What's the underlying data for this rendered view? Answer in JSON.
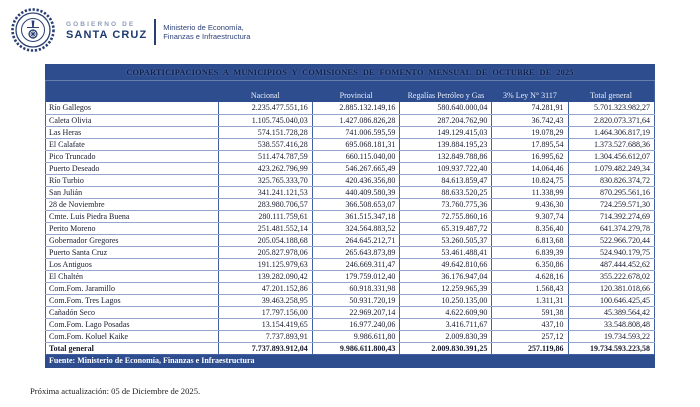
{
  "brand": {
    "gobierno_label": "GOBIERNO DE",
    "provincia": "SANTA CRUZ",
    "ministerio_line1": "Ministerio de  Economía,",
    "ministerio_line2": "Finanzas e Infraestructura"
  },
  "colors": {
    "band_navy": "#2e4d8e",
    "title_text": "#0e2150",
    "header_text": "#e8eef8",
    "grid_vertical": "#42609f",
    "grid_horizontal": "#93a6cc",
    "seal_navy": "#2b3f74"
  },
  "table": {
    "title": "COPARTICIPACIONES A MUNICIPIOS Y COMISIONES DE FOMENTO MENSUAL DE OCTUBRE DE 2025",
    "columns": [
      "",
      "Nacional",
      "Provincial",
      "Regalías Petróleo y Gas",
      "3% Ley N° 3117",
      "Total general"
    ],
    "rows": [
      {
        "name": "Río Gallegos",
        "values": [
          "2.235.477.551,16",
          "2.885.132.149,16",
          "580.640.000,04",
          "74.281,91",
          "5.701.323.982,27"
        ]
      },
      {
        "name": "Caleta Olivia",
        "values": [
          "1.105.745.040,03",
          "1.427.086.826,28",
          "287.204.762,90",
          "36.742,43",
          "2.820.073.371,64"
        ]
      },
      {
        "name": "Las Heras",
        "values": [
          "574.151.728,28",
          "741.006.595,59",
          "149.129.415,03",
          "19.078,29",
          "1.464.306.817,19"
        ]
      },
      {
        "name": "El Calafate",
        "values": [
          "538.557.416,28",
          "695.068.181,31",
          "139.884.195,23",
          "17.895,54",
          "1.373.527.688,36"
        ]
      },
      {
        "name": "Pico Truncado",
        "values": [
          "511.474.787,59",
          "660.115.040,00",
          "132.849.788,86",
          "16.995,62",
          "1.304.456.612,07"
        ]
      },
      {
        "name": "Puerto Deseado",
        "values": [
          "423.262.796,99",
          "546.267.665,49",
          "109.937.722,40",
          "14.064,46",
          "1.079.482.249,34"
        ]
      },
      {
        "name": "Río Turbio",
        "values": [
          "325.765.333,70",
          "420.436.356,80",
          "84.613.859,47",
          "10.824,75",
          "830.826.374,72"
        ]
      },
      {
        "name": "San Julián",
        "values": [
          "341.241.121,53",
          "440.409.580,39",
          "88.633.520,25",
          "11.338,99",
          "870.295.561,16"
        ]
      },
      {
        "name": "28 de Noviembre",
        "values": [
          "283.980.706,57",
          "366.508.653,07",
          "73.760.775,36",
          "9.436,30",
          "724.259.571,30"
        ]
      },
      {
        "name": "Cmte. Luis Piedra Buena",
        "values": [
          "280.111.759,61",
          "361.515.347,18",
          "72.755.860,16",
          "9.307,74",
          "714.392.274,69"
        ]
      },
      {
        "name": "Perito Moreno",
        "values": [
          "251.481.552,14",
          "324.564.883,52",
          "65.319.487,72",
          "8.356,40",
          "641.374.279,78"
        ]
      },
      {
        "name": "Gobernador Gregores",
        "values": [
          "205.054.188,68",
          "264.645.212,71",
          "53.260.505,37",
          "6.813,68",
          "522.966.720,44"
        ]
      },
      {
        "name": "Puerto Santa Cruz",
        "values": [
          "205.827.978,06",
          "265.643.873,89",
          "53.461.488,41",
          "6.839,39",
          "524.940.179,75"
        ]
      },
      {
        "name": "Los Antiguos",
        "values": [
          "191.125.979,63",
          "246.669.311,47",
          "49.642.810,66",
          "6.350,86",
          "487.444.452,62"
        ]
      },
      {
        "name": "El Chaltén",
        "values": [
          "139.282.090,42",
          "179.759.012,40",
          "36.176.947,04",
          "4.628,16",
          "355.222.678,02"
        ]
      },
      {
        "name": "Com.Fom. Jaramillo",
        "values": [
          "47.201.152,86",
          "60.918.331,98",
          "12.259.965,39",
          "1.568,43",
          "120.381.018,66"
        ]
      },
      {
        "name": "Com.Fom. Tres Lagos",
        "values": [
          "39.463.258,95",
          "50.931.720,19",
          "10.250.135,00",
          "1.311,31",
          "100.646.425,45"
        ]
      },
      {
        "name": "Cañadón Seco",
        "values": [
          "17.797.156,00",
          "22.969.207,14",
          "4.622.609,90",
          "591,38",
          "45.389.564,42"
        ]
      },
      {
        "name": "Com.Fom. Lago Posadas",
        "values": [
          "13.154.419,65",
          "16.977.240,06",
          "3.416.711,67",
          "437,10",
          "33.548.808,48"
        ]
      },
      {
        "name": "Com.Fom. Koluel Kaike",
        "values": [
          "7.737.893,91",
          "9.986.611,80",
          "2.009.830,39",
          "257,12",
          "19.734.593,22"
        ]
      }
    ],
    "total_row": {
      "name": "Total general",
      "values": [
        "7.737.893.912,04",
        "9.986.611.800,43",
        "2.009.830.391,25",
        "257.119,86",
        "19.734.593.223,58"
      ]
    },
    "source": "Fuente: Ministerio de Economía, Finanzas e Infraestructura"
  },
  "footer": {
    "next_update": "Próxima actualización: 05 de Diciembre de 2025."
  }
}
